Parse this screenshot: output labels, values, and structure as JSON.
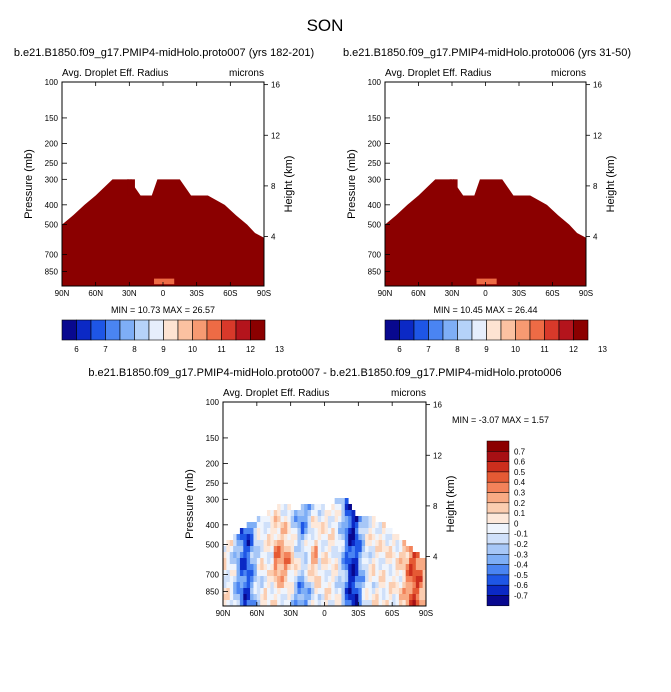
{
  "title": "SON",
  "colors": {
    "panel_fill": "#8b0000",
    "base_palette": [
      "#08088f",
      "#0b29c5",
      "#1e56e6",
      "#4a84f2",
      "#7eaef6",
      "#b5d2f9",
      "#e6eefc",
      "#fde3d2",
      "#fbc1a1",
      "#f79a72",
      "#ee6b45",
      "#d8392a",
      "#b4141c",
      "#8b0000"
    ],
    "diff_palette": [
      "#08088f",
      "#0b29c5",
      "#1e56e6",
      "#4a84f2",
      "#7eaef6",
      "#a7c7f7",
      "#cfe0fa",
      "#eef4fd",
      "#fde8da",
      "#fbcdb0",
      "#f8aa84",
      "#f3825a",
      "#e55a34",
      "#cc2e1d",
      "#a71014",
      "#8b0000"
    ]
  },
  "chart_data": [
    {
      "type": "heatmap",
      "name": "panel-left",
      "title": "b.e21.B1850.f09_g17.PMIP4-midHolo.proto007 (yrs 182-201)",
      "field_label": "Avg. Droplet Eff. Radius",
      "units": "microns",
      "ylabel": "Pressure (mb)",
      "ylabel_right": "Height (km)",
      "x_ticks": [
        "90N",
        "60N",
        "30N",
        "0",
        "30S",
        "60S",
        "90S"
      ],
      "x_tick_values": [
        90,
        60,
        30,
        0,
        -30,
        -60,
        -90
      ],
      "y_ticks": [
        "100",
        "150",
        "200",
        "250",
        "300",
        "400",
        "500",
        "700",
        "850"
      ],
      "y_tick_values": [
        100,
        150,
        200,
        250,
        300,
        400,
        500,
        700,
        850
      ],
      "y_range": [
        100,
        1000
      ],
      "y_scale": "log",
      "right_ticks": [
        "16",
        "12",
        "8",
        "4"
      ],
      "right_tick_values": [
        16,
        12,
        8,
        4
      ],
      "min_label": "MIN = 10.73  MAX = 26.57",
      "min": 10.73,
      "max": 26.57,
      "cloud_top_profile": [
        [
          90,
          500
        ],
        [
          80,
          450
        ],
        [
          70,
          400
        ],
        [
          60,
          360
        ],
        [
          45,
          300
        ],
        [
          30,
          300
        ],
        [
          20,
          360
        ],
        [
          10,
          360
        ],
        [
          5,
          300
        ],
        [
          -15,
          300
        ],
        [
          -25,
          360
        ],
        [
          -40,
          360
        ],
        [
          -55,
          400
        ],
        [
          -65,
          450
        ],
        [
          -75,
          500
        ],
        [
          -82,
          550
        ],
        [
          -90,
          580
        ]
      ],
      "dominant_level": 13
    },
    {
      "type": "heatmap",
      "name": "panel-right",
      "title": "b.e21.B1850.f09_g17.PMIP4-midHolo.proto006 (yrs 31-50)",
      "field_label": "Avg. Droplet Eff. Radius",
      "units": "microns",
      "ylabel": "Pressure (mb)",
      "ylabel_right": "Height (km)",
      "x_ticks": [
        "90N",
        "60N",
        "30N",
        "0",
        "30S",
        "60S",
        "90S"
      ],
      "x_tick_values": [
        90,
        60,
        30,
        0,
        -30,
        -60,
        -90
      ],
      "y_ticks": [
        "100",
        "150",
        "200",
        "250",
        "300",
        "400",
        "500",
        "700",
        "850"
      ],
      "y_tick_values": [
        100,
        150,
        200,
        250,
        300,
        400,
        500,
        700,
        850
      ],
      "y_range": [
        100,
        1000
      ],
      "y_scale": "log",
      "right_ticks": [
        "16",
        "12",
        "8",
        "4"
      ],
      "right_tick_values": [
        16,
        12,
        8,
        4
      ],
      "min_label": "MIN = 10.45  MAX = 26.44",
      "min": 10.45,
      "max": 26.44,
      "cloud_top_profile": [
        [
          90,
          500
        ],
        [
          80,
          450
        ],
        [
          70,
          400
        ],
        [
          60,
          360
        ],
        [
          45,
          300
        ],
        [
          30,
          300
        ],
        [
          20,
          360
        ],
        [
          10,
          360
        ],
        [
          5,
          300
        ],
        [
          -15,
          300
        ],
        [
          -25,
          360
        ],
        [
          -40,
          360
        ],
        [
          -55,
          400
        ],
        [
          -65,
          450
        ],
        [
          -75,
          500
        ],
        [
          -82,
          550
        ],
        [
          -90,
          580
        ]
      ],
      "dominant_level": 13
    },
    {
      "type": "heatmap",
      "name": "panel-diff",
      "title": "b.e21.B1850.f09_g17.PMIP4-midHolo.proto007 - b.e21.B1850.f09_g17.PMIP4-midHolo.proto006",
      "field_label": "Avg. Droplet Eff. Radius",
      "units": "microns",
      "ylabel": "Pressure (mb)",
      "ylabel_right": "Height (km)",
      "x_ticks": [
        "90N",
        "60N",
        "30N",
        "0",
        "30S",
        "60S",
        "90S"
      ],
      "x_tick_values": [
        90,
        60,
        30,
        0,
        -30,
        -60,
        -90
      ],
      "y_ticks": [
        "100",
        "150",
        "200",
        "250",
        "300",
        "400",
        "500",
        "700",
        "850"
      ],
      "y_tick_values": [
        100,
        150,
        200,
        250,
        300,
        400,
        500,
        700,
        850
      ],
      "y_range": [
        100,
        1000
      ],
      "y_scale": "log",
      "right_ticks": [
        "16",
        "12",
        "8",
        "4"
      ],
      "right_tick_values": [
        16,
        12,
        8,
        4
      ],
      "min_label": "MIN = -3.07  MAX =  1.57",
      "min": -3.07,
      "max": 1.57,
      "cloud_top_profile": [
        [
          90,
          500
        ],
        [
          80,
          450
        ],
        [
          70,
          400
        ],
        [
          55,
          360
        ],
        [
          40,
          320
        ],
        [
          25,
          330
        ],
        [
          10,
          320
        ],
        [
          -5,
          330
        ],
        [
          -10,
          300
        ],
        [
          -20,
          300
        ],
        [
          -28,
          360
        ],
        [
          -40,
          360
        ],
        [
          -55,
          400
        ],
        [
          -65,
          450
        ],
        [
          -75,
          500
        ],
        [
          -82,
          550
        ],
        [
          -90,
          580
        ]
      ]
    }
  ],
  "colorbars": {
    "base": {
      "labels": [
        "6",
        "7",
        "8",
        "9",
        "10",
        "11",
        "12",
        "13"
      ],
      "levels": [
        6,
        7,
        8,
        9,
        10,
        11,
        12,
        13
      ]
    },
    "diff": {
      "labels": [
        "0.7",
        "0.6",
        "0.5",
        "0.4",
        "0.3",
        "0.2",
        "0.1",
        "0",
        "-0.1",
        "-0.2",
        "-0.3",
        "-0.4",
        "-0.5",
        "-0.6",
        "-0.7"
      ],
      "levels": [
        0.7,
        0.6,
        0.5,
        0.4,
        0.3,
        0.2,
        0.1,
        0,
        -0.1,
        -0.2,
        -0.3,
        -0.4,
        -0.5,
        -0.6,
        -0.7
      ]
    }
  }
}
